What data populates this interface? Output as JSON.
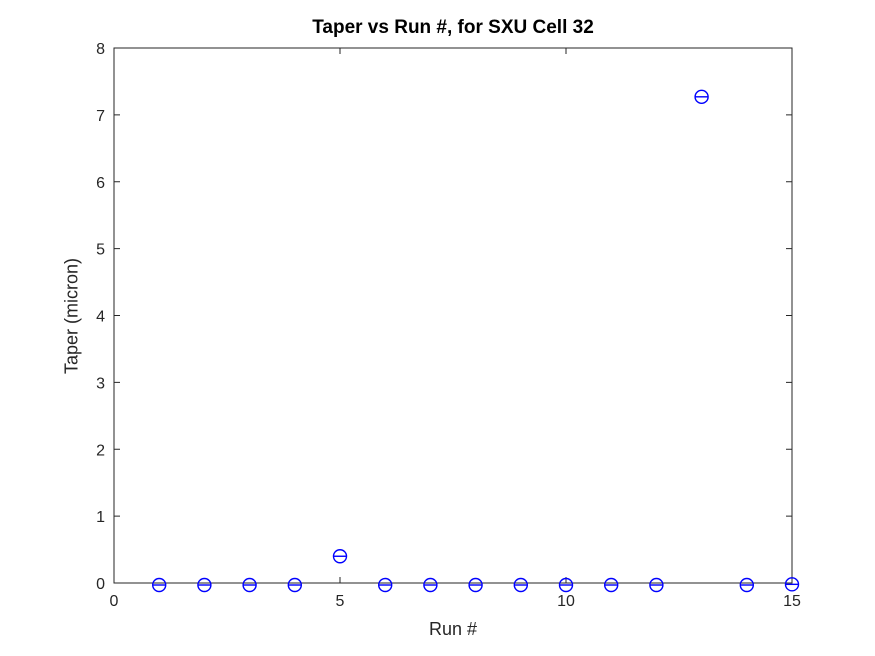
{
  "chart_data": {
    "type": "scatter",
    "title": "Taper vs Run #, for SXU Cell 32",
    "xlabel": "Run #",
    "ylabel": "Taper (micron)",
    "x": [
      1,
      2,
      3,
      4,
      5,
      6,
      7,
      8,
      9,
      10,
      11,
      12,
      13,
      14,
      15
    ],
    "y": [
      -0.03,
      -0.03,
      -0.03,
      -0.03,
      0.4,
      -0.03,
      -0.03,
      -0.03,
      -0.03,
      -0.03,
      -0.03,
      -0.03,
      7.27,
      -0.03,
      -0.02
    ],
    "xlim": [
      0,
      15
    ],
    "ylim": [
      0,
      8
    ],
    "xticks": [
      0,
      5,
      10,
      15
    ],
    "yticks": [
      0,
      1,
      2,
      3,
      4,
      5,
      6,
      7,
      8
    ],
    "grid": false,
    "box": true,
    "legend": null,
    "marker": "open-circle-with-horizontal-errorbar-cap",
    "marker_color": "#0000ff",
    "axis_color": "#262626",
    "background": "#ffffff"
  }
}
